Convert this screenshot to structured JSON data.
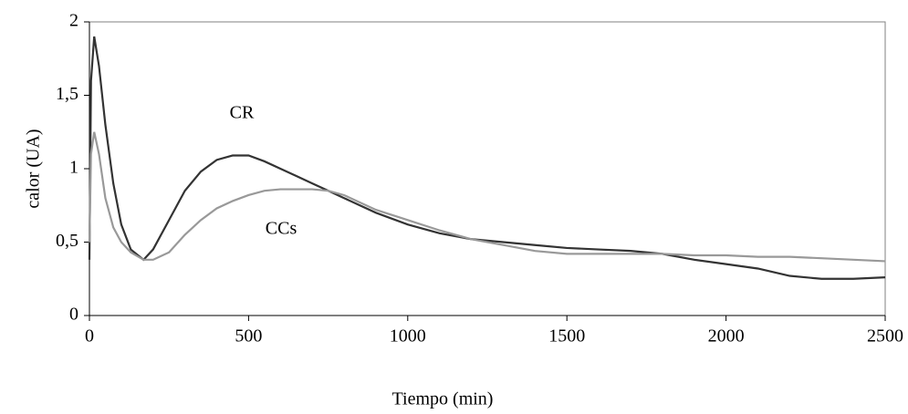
{
  "chart_data": {
    "type": "line",
    "x_label": "Tiempo (min)",
    "y_label": "calor (UA)",
    "x": [
      0,
      5,
      15,
      30,
      50,
      75,
      100,
      130,
      170,
      200,
      250,
      300,
      350,
      400,
      450,
      500,
      550,
      600,
      650,
      700,
      750,
      800,
      900,
      1000,
      1100,
      1200,
      1300,
      1400,
      1500,
      1600,
      1700,
      1800,
      1900,
      2000,
      2100,
      2200,
      2300,
      2400,
      2500
    ],
    "series": [
      {
        "name": "CR",
        "color": "#333333",
        "values": [
          0.38,
          1.6,
          1.9,
          1.7,
          1.3,
          0.9,
          0.62,
          0.45,
          0.38,
          0.45,
          0.65,
          0.85,
          0.98,
          1.06,
          1.09,
          1.09,
          1.05,
          1.0,
          0.95,
          0.9,
          0.85,
          0.8,
          0.7,
          0.62,
          0.56,
          0.52,
          0.5,
          0.48,
          0.46,
          0.45,
          0.44,
          0.42,
          0.38,
          0.35,
          0.32,
          0.27,
          0.25,
          0.25,
          0.26
        ]
      },
      {
        "name": "CCs",
        "color": "#999999",
        "values": [
          0.5,
          1.1,
          1.25,
          1.1,
          0.8,
          0.6,
          0.5,
          0.43,
          0.38,
          0.38,
          0.43,
          0.55,
          0.65,
          0.73,
          0.78,
          0.82,
          0.85,
          0.86,
          0.86,
          0.86,
          0.85,
          0.82,
          0.72,
          0.65,
          0.58,
          0.52,
          0.48,
          0.44,
          0.42,
          0.42,
          0.42,
          0.42,
          0.41,
          0.41,
          0.4,
          0.4,
          0.39,
          0.38,
          0.37
        ]
      }
    ],
    "xlim": [
      0,
      2500
    ],
    "xticks": [
      0,
      500,
      1000,
      1500,
      2000,
      2500
    ],
    "ylim": [
      0,
      2
    ],
    "yticks": [
      0,
      {
        "value": 0.5,
        "label": "0,5"
      },
      1,
      {
        "value": 1.5,
        "label": "1,5"
      },
      2
    ],
    "grid": false
  }
}
